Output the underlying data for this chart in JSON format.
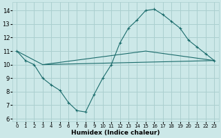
{
  "xlabel": "Humidex (Indice chaleur)",
  "background_color": "#cce8e8",
  "grid_color": "#aacfcf",
  "line_color": "#1a6b6b",
  "xlim": [
    -0.5,
    23.5
  ],
  "ylim": [
    5.8,
    14.6
  ],
  "yticks": [
    6,
    7,
    8,
    9,
    10,
    11,
    12,
    13,
    14
  ],
  "xticks": [
    0,
    1,
    2,
    3,
    4,
    5,
    6,
    7,
    8,
    9,
    10,
    11,
    12,
    13,
    14,
    15,
    16,
    17,
    18,
    19,
    20,
    21,
    22,
    23
  ],
  "line1_x": [
    0,
    1,
    2,
    3,
    4,
    5,
    6,
    7,
    8,
    9,
    10,
    11,
    12,
    13,
    14,
    15,
    16,
    17,
    18,
    19,
    20,
    21,
    22,
    23
  ],
  "line1_y": [
    11.0,
    10.3,
    10.0,
    9.0,
    8.5,
    8.1,
    7.2,
    6.6,
    6.5,
    7.8,
    9.0,
    10.0,
    11.6,
    12.7,
    13.3,
    14.0,
    14.1,
    13.7,
    13.2,
    12.7,
    11.8,
    11.3,
    10.8,
    10.3
  ],
  "line2_x": [
    0,
    3,
    23
  ],
  "line2_y": [
    11.0,
    10.0,
    10.3
  ],
  "line3_x": [
    3,
    15,
    23
  ],
  "line3_y": [
    10.0,
    11.0,
    10.3
  ]
}
